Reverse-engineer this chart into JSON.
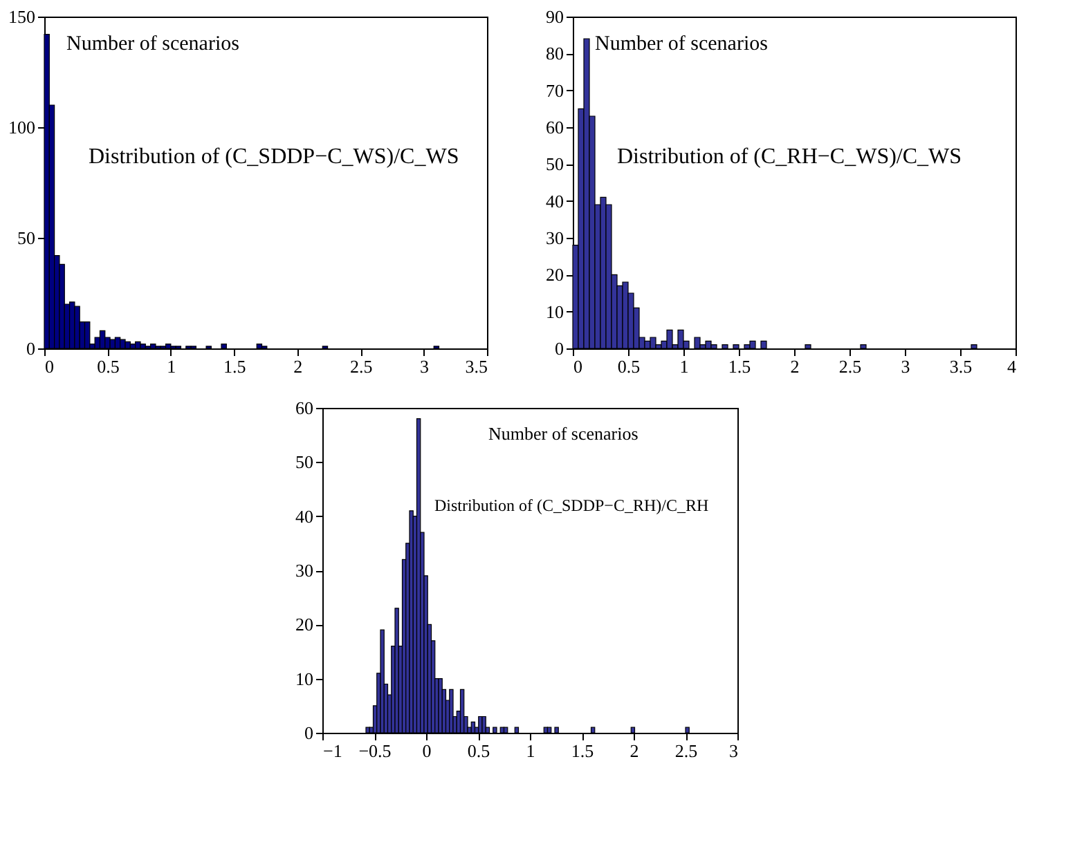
{
  "chart_data": [
    {
      "type": "histogram",
      "annotations": [
        "Number of scenarios",
        "Distribution of (C_SDDP−C_WS)/C_WS"
      ],
      "bins": [
        0,
        0.04,
        0.08,
        0.12,
        0.16,
        0.2,
        0.24,
        0.28,
        0.32,
        0.36,
        0.4,
        0.44,
        0.48,
        0.52,
        0.56,
        0.6,
        0.64,
        0.68,
        0.72,
        0.76,
        0.8,
        0.84,
        0.88,
        0.92,
        0.96,
        1.0,
        1.04,
        1.08,
        1.12,
        1.16,
        1.2,
        1.24,
        1.28,
        1.32,
        1.36,
        1.4,
        1.44,
        1.48,
        1.52,
        1.56,
        1.6,
        1.64,
        1.68,
        1.72,
        1.76,
        1.8,
        1.84,
        1.88,
        1.92,
        1.96,
        2.0,
        2.04,
        2.08,
        2.12,
        2.16,
        2.2,
        2.24,
        2.28,
        2.32,
        2.36,
        2.4,
        2.44,
        2.48,
        2.52,
        2.56,
        2.6,
        2.64,
        2.68,
        2.72,
        2.76,
        2.8,
        2.84,
        2.88,
        2.92,
        2.96,
        3.0,
        3.04,
        3.08,
        3.12
      ],
      "values": [
        142,
        110,
        42,
        38,
        20,
        21,
        19,
        12,
        12,
        2,
        5,
        8,
        5,
        4,
        5,
        4,
        3,
        2,
        3,
        2,
        1,
        2,
        1,
        1,
        2,
        1,
        1,
        0,
        1,
        1,
        0,
        0,
        1,
        0,
        0,
        2,
        0,
        0,
        0,
        0,
        0,
        0,
        2,
        1,
        0,
        0,
        0,
        0,
        0,
        0,
        0,
        0,
        0,
        0,
        0,
        1,
        0,
        0,
        0,
        0,
        0,
        0,
        0,
        0,
        0,
        0,
        0,
        0,
        0,
        0,
        0,
        0,
        0,
        0,
        0,
        0,
        0,
        1
      ],
      "color": "#000080",
      "xlim": [
        0,
        3.5
      ],
      "xticks": [
        0,
        0.5,
        1,
        1.5,
        2,
        2.5,
        3,
        3.5
      ],
      "ylim": [
        0,
        150
      ],
      "yticks": [
        0,
        50,
        100,
        150
      ],
      "grid": false
    },
    {
      "type": "histogram",
      "annotations": [
        "Number of scenarios",
        "Distribution of (C_RH−C_WS)/C_WS"
      ],
      "bins": [
        0,
        0.05,
        0.1,
        0.15,
        0.2,
        0.25,
        0.3,
        0.35,
        0.4,
        0.45,
        0.5,
        0.55,
        0.6,
        0.65,
        0.7,
        0.75,
        0.8,
        0.85,
        0.9,
        0.95,
        1.0,
        1.05,
        1.1,
        1.15,
        1.2,
        1.25,
        1.3,
        1.35,
        1.4,
        1.45,
        1.5,
        1.55,
        1.6,
        1.65,
        1.7,
        1.75,
        1.8,
        1.85,
        1.9,
        1.95,
        2.0,
        2.05,
        2.1,
        2.15,
        2.2,
        2.25,
        2.3,
        2.35,
        2.4,
        2.45,
        2.5,
        2.55,
        2.6,
        2.65,
        2.7,
        2.75,
        2.8,
        2.85,
        2.9,
        2.95,
        3.0,
        3.05,
        3.1,
        3.15,
        3.2,
        3.25,
        3.3,
        3.35,
        3.4,
        3.45,
        3.5,
        3.55,
        3.6,
        3.65
      ],
      "values": [
        28,
        65,
        84,
        63,
        39,
        41,
        39,
        20,
        17,
        18,
        15,
        11,
        3,
        2,
        3,
        1,
        2,
        5,
        1,
        5,
        2,
        0,
        3,
        1,
        2,
        1,
        0,
        1,
        0,
        1,
        0,
        1,
        2,
        0,
        2,
        0,
        0,
        0,
        0,
        0,
        0,
        0,
        1,
        0,
        0,
        0,
        0,
        0,
        0,
        0,
        0,
        0,
        1,
        0,
        0,
        0,
        0,
        0,
        0,
        0,
        0,
        0,
        0,
        0,
        0,
        0,
        0,
        0,
        0,
        0,
        0,
        0,
        1
      ],
      "color": "#333399",
      "xlim": [
        0,
        4
      ],
      "xticks": [
        0,
        0.5,
        1,
        1.5,
        2,
        2.5,
        3,
        3.5,
        4
      ],
      "ylim": [
        0,
        90
      ],
      "yticks": [
        0,
        10,
        20,
        30,
        40,
        50,
        60,
        70,
        80,
        90
      ],
      "grid": false
    },
    {
      "type": "histogram",
      "annotations": [
        "Number of scenarios",
        "Distribution of (C_SDDP−C_RH)/C_RH"
      ],
      "bins": [
        -0.58,
        -0.545,
        -0.51,
        -0.475,
        -0.44,
        -0.405,
        -0.37,
        -0.335,
        -0.3,
        -0.265,
        -0.23,
        -0.195,
        -0.16,
        -0.125,
        -0.09,
        -0.055,
        -0.02,
        0.015,
        0.05,
        0.085,
        0.12,
        0.155,
        0.19,
        0.225,
        0.26,
        0.295,
        0.33,
        0.365,
        0.4,
        0.435,
        0.47,
        0.505,
        0.54,
        0.575,
        0.61,
        0.645,
        0.68,
        0.715,
        0.75,
        0.785,
        0.82,
        0.855,
        0.89,
        0.925,
        0.96,
        0.995,
        1.03,
        1.065,
        1.1,
        1.135,
        1.17,
        1.205,
        1.24,
        1.275,
        1.31,
        1.345,
        1.38,
        1.415,
        1.45,
        1.485,
        1.52,
        1.555,
        1.59,
        1.625,
        1.66,
        1.695,
        1.73,
        1.765,
        1.8,
        1.835,
        1.87,
        1.905,
        1.94,
        1.975,
        2.01,
        2.045,
        2.08,
        2.115,
        2.15,
        2.185,
        2.22,
        2.255,
        2.29,
        2.325,
        2.36,
        2.395,
        2.43,
        2.465,
        2.5,
        2.535
      ],
      "values": [
        1,
        1,
        5,
        11,
        19,
        9,
        7,
        16,
        23,
        16,
        32,
        35,
        41,
        40,
        58,
        37,
        29,
        20,
        17,
        10,
        10,
        8,
        6,
        8,
        3,
        4,
        8,
        3,
        1,
        2,
        1,
        3,
        3,
        1,
        0,
        1,
        0,
        1,
        1,
        0,
        0,
        1,
        0,
        0,
        0,
        0,
        0,
        0,
        0,
        1,
        1,
        0,
        1,
        0,
        0,
        0,
        0,
        0,
        0,
        0,
        0,
        0,
        1,
        0,
        0,
        0,
        0,
        0,
        0,
        0,
        0,
        0,
        0,
        1,
        0,
        0,
        0,
        0,
        0,
        0,
        0,
        0,
        0,
        0,
        0,
        0,
        0,
        0,
        1
      ],
      "color": "#333399",
      "xlim": [
        -1,
        3
      ],
      "xticks": [
        {
          "value": -1,
          "label": "−1"
        },
        {
          "value": -0.5,
          "label": "−0.5"
        },
        0,
        0.5,
        1,
        1.5,
        2,
        2.5,
        3
      ],
      "ylim": [
        0,
        60
      ],
      "yticks": [
        0,
        10,
        20,
        30,
        40,
        50,
        60
      ],
      "grid": false
    }
  ]
}
